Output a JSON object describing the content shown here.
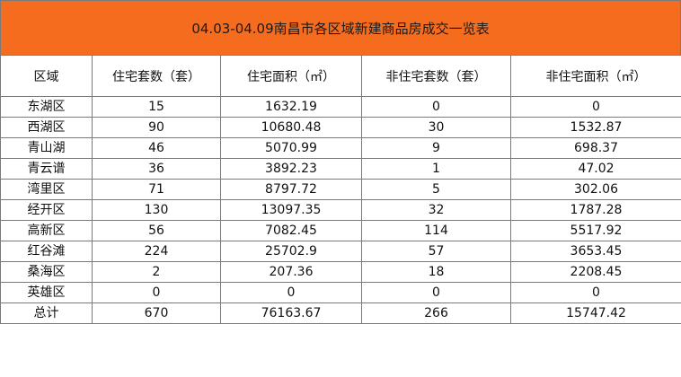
{
  "title": "04.03-04.09南昌市各区域新建商品房成交一览表",
  "headers": [
    "区域",
    "住宅套数（套）",
    "住宅面积（㎡）",
    "非住宅套数（套）",
    "非住宅面积（㎡）"
  ],
  "rows": [
    [
      "东湖区",
      "15",
      "1632.19",
      "0",
      "0"
    ],
    [
      "西湖区",
      "90",
      "10680.48",
      "30",
      "1532.87"
    ],
    [
      "青山湖",
      "46",
      "5070.99",
      "9",
      "698.37"
    ],
    [
      "青云谱",
      "36",
      "3892.23",
      "1",
      "47.02"
    ],
    [
      "湾里区",
      "71",
      "8797.72",
      "5",
      "302.06"
    ],
    [
      "经开区",
      "130",
      "13097.35",
      "32",
      "1787.28"
    ],
    [
      "高新区",
      "56",
      "7082.45",
      "114",
      "5517.92"
    ],
    [
      "红谷滩",
      "224",
      "25702.9",
      "57",
      "3653.45"
    ],
    [
      "桑海区",
      "2",
      "207.36",
      "18",
      "2208.45"
    ],
    [
      "英雄区",
      "0",
      "0",
      "0",
      "0"
    ],
    [
      "总计",
      "670",
      "76163.67",
      "266",
      "15747.42"
    ]
  ],
  "colors": {
    "title_background": "#f66c1f",
    "border": "#7a7a7a"
  }
}
